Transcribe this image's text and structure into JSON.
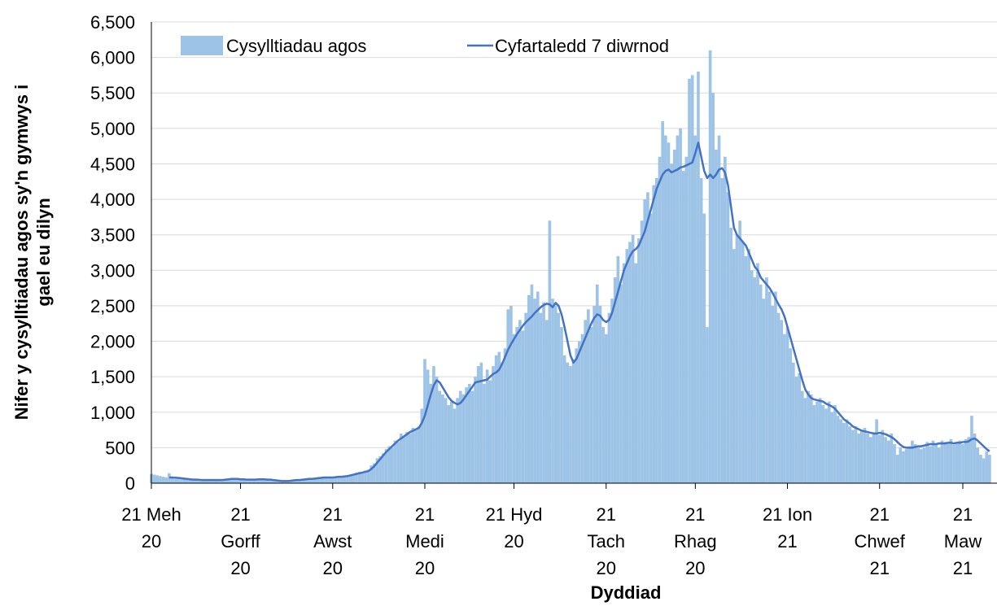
{
  "chart_data": {
    "type": "bar_line",
    "y_label": "Nifer y cysylltiadau agos sy'n gymwys i\ngael eu dilyn",
    "x_label": "Dyddiad",
    "ylim": [
      0,
      6500
    ],
    "yticks": [
      0,
      500,
      {
        "value": 1000,
        "label": "1,000"
      },
      {
        "value": 1500,
        "label": "1,500"
      },
      {
        "value": 2000,
        "label": "2,000"
      },
      {
        "value": 2500,
        "label": "2,500"
      },
      {
        "value": 3000,
        "label": "3,000"
      },
      {
        "value": 3500,
        "label": "3,500"
      },
      {
        "value": 4000,
        "label": "4,000"
      },
      {
        "value": 4500,
        "label": "4,500"
      },
      {
        "value": 5000,
        "label": "5,000"
      },
      {
        "value": 5500,
        "label": "5,500"
      },
      {
        "value": 6000,
        "label": "6,000"
      },
      {
        "value": 6500,
        "label": "6,500"
      }
    ],
    "grid": true,
    "categories": [
      "21 Meh\n20",
      null,
      null,
      null,
      null,
      null,
      null,
      null,
      null,
      null,
      null,
      null,
      null,
      null,
      null,
      null,
      null,
      null,
      null,
      null,
      null,
      null,
      null,
      null,
      null,
      null,
      null,
      null,
      null,
      null,
      "21\nGorff\n20",
      null,
      null,
      null,
      null,
      null,
      null,
      null,
      null,
      null,
      null,
      null,
      null,
      null,
      null,
      null,
      null,
      null,
      null,
      null,
      null,
      null,
      null,
      null,
      null,
      null,
      null,
      null,
      null,
      null,
      null,
      "21\nAwst\n20",
      null,
      null,
      null,
      null,
      null,
      null,
      null,
      null,
      null,
      null,
      null,
      null,
      null,
      null,
      null,
      null,
      null,
      null,
      null,
      null,
      null,
      null,
      null,
      null,
      null,
      null,
      null,
      null,
      null,
      null,
      "21\nMedi\n20",
      null,
      null,
      null,
      null,
      null,
      null,
      null,
      null,
      null,
      null,
      null,
      null,
      null,
      null,
      null,
      null,
      null,
      null,
      null,
      null,
      null,
      null,
      null,
      null,
      null,
      null,
      null,
      null,
      null,
      "21 Hyd\n20",
      null,
      null,
      null,
      null,
      null,
      null,
      null,
      null,
      null,
      null,
      null,
      null,
      null,
      null,
      null,
      null,
      null,
      null,
      null,
      null,
      null,
      null,
      null,
      null,
      null,
      null,
      null,
      null,
      null,
      null,
      "21\nTach\n20",
      null,
      null,
      null,
      null,
      null,
      null,
      null,
      null,
      null,
      null,
      null,
      null,
      null,
      null,
      null,
      null,
      null,
      null,
      null,
      null,
      null,
      null,
      null,
      null,
      null,
      null,
      null,
      null,
      null,
      "21\nRhag\n20",
      null,
      null,
      null,
      null,
      null,
      null,
      null,
      null,
      null,
      null,
      null,
      null,
      null,
      null,
      null,
      null,
      null,
      null,
      null,
      null,
      null,
      null,
      null,
      null,
      null,
      null,
      null,
      null,
      null,
      null,
      "21 Ion\n21",
      null,
      null,
      null,
      null,
      null,
      null,
      null,
      null,
      null,
      null,
      null,
      null,
      null,
      null,
      null,
      null,
      null,
      null,
      null,
      null,
      null,
      null,
      null,
      null,
      null,
      null,
      null,
      null,
      null,
      null,
      "21\nChwef\n21",
      null,
      null,
      null,
      null,
      null,
      null,
      null,
      null,
      null,
      null,
      null,
      null,
      null,
      null,
      null,
      null,
      null,
      null,
      null,
      null,
      null,
      null,
      null,
      null,
      null,
      null,
      null,
      "21\nMaw\n21",
      null,
      null,
      null,
      null,
      null,
      null,
      null,
      null,
      null
    ],
    "series": [
      {
        "name": "Cysylltiadau agos",
        "kind": "bar",
        "color": "#9dc3e6",
        "values": [
          130,
          120,
          110,
          100,
          90,
          80,
          140,
          80,
          60,
          70,
          55,
          60,
          50,
          45,
          60,
          40,
          45,
          50,
          40,
          45,
          40,
          50,
          45,
          35,
          50,
          55,
          60,
          70,
          65,
          50,
          50,
          60,
          45,
          50,
          55,
          40,
          65,
          70,
          50,
          45,
          50,
          40,
          35,
          30,
          25,
          20,
          30,
          40,
          45,
          50,
          40,
          55,
          60,
          75,
          50,
          70,
          80,
          85,
          90,
          70,
          80,
          75,
          90,
          100,
          85,
          110,
          95,
          120,
          130,
          150,
          160,
          140,
          180,
          190,
          250,
          280,
          350,
          380,
          420,
          480,
          520,
          500,
          600,
          580,
          700,
          650,
          720,
          700,
          780,
          750,
          800,
          1050,
          1750,
          1600,
          1400,
          1650,
          1500,
          1300,
          1250,
          1200,
          1100,
          1150,
          1050,
          1200,
          1300,
          1250,
          1350,
          1400,
          1300,
          1500,
          1650,
          1700,
          1400,
          1600,
          1450,
          1650,
          1800,
          1850,
          1700,
          1900,
          2450,
          2500,
          2100,
          2200,
          2300,
          2150,
          2400,
          2650,
          2800,
          2600,
          2700,
          2400,
          2550,
          2300,
          3700,
          2600,
          2500,
          2400,
          2200,
          1800,
          1700,
          1650,
          1750,
          1900,
          2000,
          2100,
          2300,
          2450,
          2200,
          2500,
          2800,
          2500,
          2200,
          2100,
          2400,
          2600,
          2900,
          3200,
          2800,
          3100,
          3300,
          3400,
          3500,
          3100,
          3450,
          3700,
          4000,
          4100,
          3800,
          4200,
          4300,
          4600,
          5100,
          4900,
          4800,
          4500,
          4700,
          4900,
          5000,
          4400,
          4600,
          5700,
          5750,
          4900,
          5800,
          4300,
          3800,
          2200,
          6100,
          5500,
          4700,
          4900,
          4300,
          4600,
          4100,
          3600,
          3300,
          3500,
          3700,
          3400,
          3200,
          3300,
          3000,
          2900,
          3100,
          2800,
          2600,
          2900,
          2700,
          2500,
          2700,
          2400,
          2300,
          2100,
          2200,
          1900,
          1700,
          1500,
          1550,
          1300,
          1200,
          1300,
          1250,
          1100,
          1150,
          1200,
          1100,
          1050,
          1150,
          1000,
          1100,
          950,
          900,
          850,
          900,
          800,
          750,
          800,
          700,
          750,
          780,
          700,
          650,
          720,
          900,
          680,
          750,
          650,
          600,
          700,
          550,
          400,
          500,
          450,
          480,
          520,
          600,
          550,
          500,
          480,
          500,
          580,
          520,
          600,
          550,
          500,
          600,
          580,
          560,
          620,
          540,
          580,
          600,
          550,
          620,
          650,
          950,
          700,
          500,
          400,
          350,
          450,
          400
        ]
      },
      {
        "name": "Cyfartaledd 7 diwrnod",
        "kind": "line",
        "color": "#4472c4",
        "values": [
          null,
          null,
          null,
          null,
          null,
          null,
          80,
          80,
          78,
          75,
          70,
          65,
          60,
          55,
          50,
          50,
          48,
          45,
          45,
          45,
          45,
          45,
          45,
          45,
          45,
          50,
          55,
          60,
          60,
          60,
          55,
          55,
          50,
          50,
          50,
          50,
          55,
          55,
          55,
          50,
          50,
          45,
          40,
          35,
          30,
          30,
          30,
          35,
          40,
          45,
          45,
          50,
          55,
          60,
          60,
          65,
          70,
          75,
          80,
          80,
          80,
          80,
          85,
          90,
          90,
          95,
          100,
          110,
          120,
          130,
          140,
          150,
          160,
          170,
          200,
          240,
          290,
          340,
          390,
          440,
          480,
          520,
          560,
          600,
          630,
          660,
          690,
          720,
          740,
          760,
          780,
          850,
          950,
          1100,
          1250,
          1380,
          1450,
          1420,
          1350,
          1280,
          1210,
          1160,
          1130,
          1110,
          1130,
          1180,
          1240,
          1300,
          1360,
          1420,
          1430,
          1440,
          1450,
          1460,
          1500,
          1540,
          1560,
          1600,
          1680,
          1780,
          1880,
          1960,
          2030,
          2100,
          2160,
          2220,
          2270,
          2310,
          2350,
          2400,
          2440,
          2480,
          2510,
          2530,
          2520,
          2480,
          2540,
          2500,
          2380,
          2200,
          2000,
          1800,
          1700,
          1750,
          1850,
          1950,
          2050,
          2150,
          2250,
          2330,
          2380,
          2360,
          2300,
          2270,
          2300,
          2400,
          2550,
          2700,
          2850,
          3000,
          3100,
          3200,
          3270,
          3300,
          3350,
          3450,
          3550,
          3700,
          3850,
          4000,
          4150,
          4250,
          4350,
          4400,
          4420,
          4380,
          4400,
          4420,
          4450,
          4460,
          4480,
          4500,
          4520,
          4650,
          4800,
          4600,
          4400,
          4300,
          4350,
          4300,
          4350,
          4420,
          4440,
          4380,
          4200,
          3900,
          3600,
          3500,
          3450,
          3400,
          3350,
          3250,
          3150,
          3050,
          3000,
          2900,
          2850,
          2800,
          2750,
          2680,
          2600,
          2520,
          2450,
          2350,
          2200,
          2050,
          1900,
          1750,
          1600,
          1450,
          1320,
          1250,
          1200,
          1180,
          1170,
          1160,
          1150,
          1120,
          1100,
          1080,
          1050,
          1000,
          950,
          900,
          870,
          840,
          800,
          780,
          760,
          740,
          730,
          720,
          710,
          700,
          700,
          710,
          700,
          690,
          670,
          650,
          620,
          580,
          540,
          510,
          500,
          500,
          500,
          510,
          520,
          520,
          530,
          540,
          550,
          550,
          550,
          560,
          560,
          560,
          570,
          570,
          560,
          570,
          570,
          580,
          580,
          590,
          620,
          630,
          600,
          560,
          520,
          480,
          450
        ]
      }
    ]
  }
}
